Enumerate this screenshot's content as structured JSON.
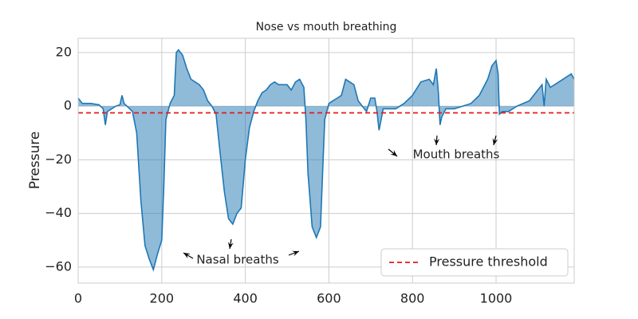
{
  "chart_data": {
    "type": "line",
    "title": "Nose vs mouth breathing",
    "y_label": "Pressure",
    "x": [
      0,
      10,
      30,
      50,
      60,
      65,
      70,
      90,
      100,
      105,
      110,
      130,
      140,
      150,
      160,
      170,
      180,
      190,
      200,
      205,
      210,
      220,
      230,
      235,
      240,
      250,
      260,
      270,
      280,
      290,
      300,
      310,
      320,
      330,
      340,
      350,
      360,
      370,
      380,
      390,
      400,
      410,
      420,
      430,
      440,
      450,
      460,
      470,
      480,
      500,
      510,
      520,
      530,
      540,
      545,
      550,
      560,
      570,
      580,
      585,
      590,
      600,
      610,
      620,
      630,
      640,
      650,
      660,
      670,
      680,
      690,
      700,
      710,
      715,
      720,
      725,
      730,
      760,
      780,
      800,
      820,
      840,
      850,
      857,
      862,
      866,
      870,
      880,
      900,
      920,
      940,
      960,
      980,
      990,
      1000,
      1005,
      1008,
      1015,
      1030,
      1050,
      1080,
      1100,
      1110,
      1115,
      1120,
      1130,
      1140,
      1160,
      1170,
      1180,
      1187
    ],
    "series": [
      {
        "color": "#1f77b4",
        "values": [
          3,
          1,
          1,
          0.5,
          -1,
          -7,
          -2,
          0,
          0.5,
          4,
          1,
          -2,
          -10,
          -35,
          -52,
          -57,
          -61,
          -55,
          -50,
          -30,
          -5,
          1,
          4,
          20,
          21,
          19,
          14,
          10,
          9,
          8,
          6,
          2,
          0,
          -3,
          -18,
          -32,
          -42,
          -44,
          -40,
          -38,
          -20,
          -8,
          -2,
          2,
          5,
          6,
          8,
          9,
          8,
          8,
          6,
          9,
          10,
          7,
          -5,
          -25,
          -45,
          -49,
          -45,
          -25,
          -5,
          1,
          2,
          3,
          4,
          10,
          9,
          8,
          2,
          0,
          -2,
          3,
          3,
          -2,
          -9,
          -5,
          -1,
          -1,
          1,
          4,
          9,
          10,
          8,
          14,
          5,
          -7,
          -4,
          -1,
          -1,
          0,
          1,
          4,
          10,
          15,
          17,
          12,
          -3,
          -2,
          -2,
          0,
          2,
          6,
          8,
          0,
          10,
          7,
          8,
          10,
          11,
          12,
          10
        ]
      }
    ],
    "threshold": {
      "name": "Pressure threshold",
      "value": -2.5,
      "color": "#e41a1c"
    },
    "annotations": [
      "Nasal breaths",
      "Mouth breaths"
    ],
    "xlim": [
      0,
      1187
    ],
    "ylim": [
      -66,
      25.3
    ],
    "xticks": [
      0,
      200,
      400,
      600,
      800,
      1000
    ],
    "yticks": [
      {
        "value": -60,
        "label": "−60"
      },
      {
        "value": -40,
        "label": "−40"
      },
      {
        "value": -20,
        "label": "−20"
      },
      0,
      20
    ],
    "grid": true,
    "legend": "lower right"
  }
}
